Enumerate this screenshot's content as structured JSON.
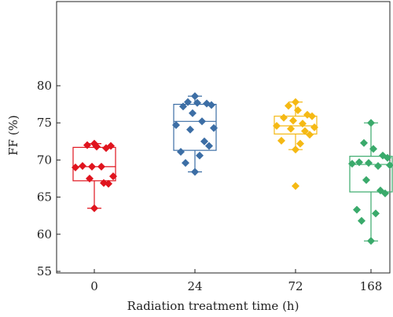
{
  "chart_data": {
    "type": "box",
    "xlabel": "Radiation treatment time (h)",
    "ylabel": "FF (%)",
    "ylim": [
      55,
      82
    ],
    "yticks": [
      55,
      60,
      65,
      70,
      75,
      80
    ],
    "categories": [
      "0",
      "24",
      "72",
      "168"
    ],
    "grid": false,
    "series": [
      {
        "color": "#e0141e",
        "box": {
          "min": 63.5,
          "q1": 67.2,
          "median": 69.1,
          "q3": 71.7,
          "max": 72.2
        },
        "points": [
          72.2,
          72.0,
          71.8,
          71.6,
          71.9,
          69.2,
          69.1,
          69.1,
          69.0,
          67.8,
          67.5,
          66.9,
          66.8,
          63.5
        ]
      },
      {
        "color": "#3c6ea5",
        "box": {
          "min": 68.4,
          "q1": 71.3,
          "median": 75.2,
          "q3": 77.5,
          "max": 78.6
        },
        "points": [
          78.6,
          77.8,
          77.7,
          77.6,
          77.4,
          77.2,
          76.3,
          75.2,
          74.7,
          74.3,
          74.1,
          72.5,
          71.9,
          71.1,
          70.6,
          69.6,
          68.4
        ]
      },
      {
        "color": "#f5b914",
        "box": {
          "min": 71.4,
          "q1": 73.5,
          "median": 74.6,
          "q3": 75.9,
          "max": 77.8
        },
        "points": [
          77.8,
          77.3,
          76.7,
          76.1,
          75.9,
          75.7,
          75.3,
          74.9,
          74.6,
          74.4,
          74.2,
          73.9,
          73.4,
          72.6,
          72.2,
          71.4,
          66.5
        ]
      },
      {
        "color": "#3aaa6b",
        "box": {
          "min": 59.1,
          "q1": 65.7,
          "median": 69.4,
          "q3": 70.5,
          "max": 75.0
        },
        "points": [
          75.0,
          72.3,
          71.5,
          70.6,
          70.3,
          69.7,
          69.6,
          69.2,
          69.5,
          69.3,
          67.3,
          65.9,
          65.5,
          63.3,
          62.8,
          61.8,
          59.1
        ]
      }
    ]
  }
}
